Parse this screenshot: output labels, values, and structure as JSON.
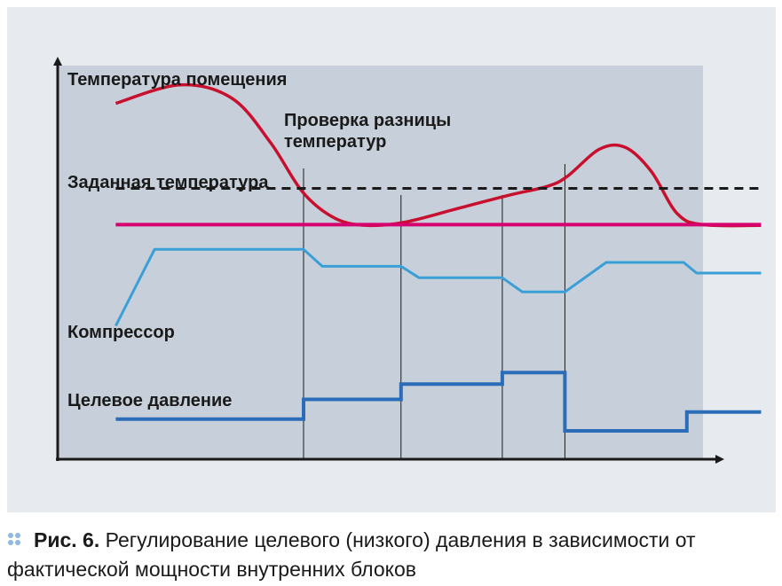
{
  "colors": {
    "panel_bg": "#e7ebef",
    "plot_bg": "#c7d0da",
    "room_temp": "#c8102e",
    "set_temp": "#d6006f",
    "compressor": "#3a9fd6",
    "target_pressure": "#2b6cb8",
    "axis": "#1a1a1a",
    "caption_dots": "#8fb9df"
  },
  "labels": {
    "room_temp": "Температура помещения",
    "check": "Проверка разницы",
    "check_line2": "температур",
    "set_temp": "Заданная температура",
    "compressor": "Компрессор",
    "target_pressure": "Целевое давление"
  },
  "caption": {
    "fig_label": "Рис. 6.",
    "text": " Регулирование целевого (низкого) давления в зависимости от фактической мощности внутренних блоков"
  },
  "chart_data": {
    "type": "line",
    "x_range": [
      0,
      100
    ],
    "y_range": [
      0,
      100
    ],
    "grid": false,
    "event_lines_x": [
      38.1,
      53.2,
      68.9,
      78.6
    ],
    "series": [
      {
        "name": "Температура помещения",
        "key": "room_temp",
        "points": [
          [
            9,
            90.4
          ],
          [
            19,
            95.1
          ],
          [
            27,
            91.7
          ],
          [
            33,
            80.4
          ],
          [
            38,
            67.8
          ],
          [
            43,
            61.2
          ],
          [
            48,
            59.4
          ],
          [
            54,
            60.3
          ],
          [
            62,
            63.7
          ],
          [
            70,
            67.1
          ],
          [
            76,
            69.4
          ],
          [
            79,
            71.9
          ],
          [
            84,
            78.8
          ],
          [
            88,
            79.2
          ],
          [
            92,
            73.1
          ],
          [
            96,
            62.4
          ],
          [
            100,
            59.6
          ],
          [
            109,
            59.4
          ]
        ]
      },
      {
        "name": "Заданная температура",
        "key": "set_temp",
        "points": [
          [
            9,
            59.6
          ],
          [
            109,
            59.6
          ]
        ]
      },
      {
        "name": "Проверка разницы температур",
        "key": "check",
        "dashed": true,
        "points": [
          [
            9,
            68.8
          ],
          [
            109,
            68.8
          ]
        ]
      },
      {
        "name": "Компрессор",
        "key": "compressor",
        "points": [
          [
            9,
            33.9
          ],
          [
            15,
            53.3
          ],
          [
            38.1,
            53.3
          ],
          [
            41,
            49.0
          ],
          [
            53.2,
            49.0
          ],
          [
            56,
            46.1
          ],
          [
            68.9,
            46.1
          ],
          [
            72,
            42.5
          ],
          [
            78.6,
            42.5
          ],
          [
            85,
            50.0
          ],
          [
            97,
            50.0
          ],
          [
            99,
            47.3
          ],
          [
            109,
            47.3
          ]
        ]
      },
      {
        "name": "Целевое давление",
        "key": "target_pressure",
        "step": true,
        "points": [
          [
            9,
            10.2
          ],
          [
            38.1,
            10.2
          ],
          [
            38.1,
            15.2
          ],
          [
            53.2,
            15.2
          ],
          [
            53.2,
            19.1
          ],
          [
            68.9,
            19.1
          ],
          [
            68.9,
            22.0
          ],
          [
            78.6,
            22.0
          ],
          [
            78.6,
            7.2
          ],
          [
            97.5,
            7.2
          ],
          [
            97.5,
            12.0
          ],
          [
            109,
            12.0
          ]
        ]
      }
    ]
  }
}
